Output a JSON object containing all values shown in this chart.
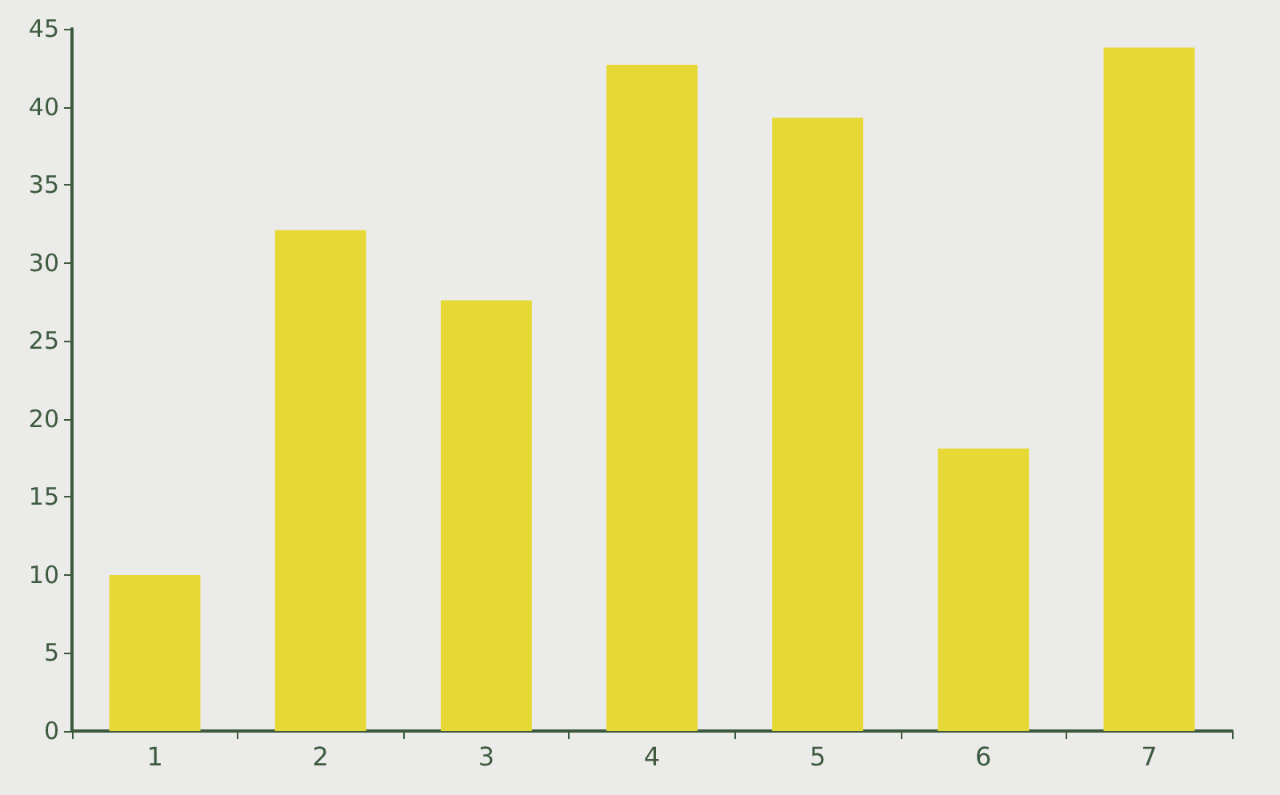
{
  "chart_data": {
    "type": "bar",
    "categories": [
      "1",
      "2",
      "3",
      "4",
      "5",
      "6",
      "7"
    ],
    "values": [
      10,
      32.1,
      27.6,
      42.7,
      39.3,
      18.1,
      43.8
    ],
    "color": "#e6d935",
    "ylim": [
      0,
      45
    ],
    "yticks": [
      0,
      5,
      10,
      15,
      20,
      25,
      30,
      35,
      40,
      45
    ],
    "grid": false
  }
}
